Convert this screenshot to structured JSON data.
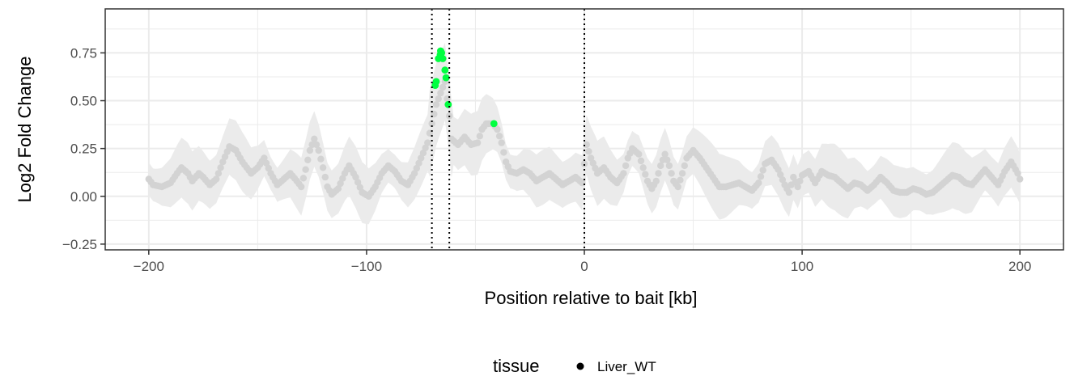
{
  "chart_data": {
    "type": "scatter",
    "xlabel": "Position relative to bait [kb]",
    "ylabel": "Log2 Fold Change",
    "xlim": [
      -220,
      220
    ],
    "ylim": [
      -0.28,
      0.98
    ],
    "x_ticks": [
      -200,
      -100,
      0,
      100,
      200
    ],
    "x_tick_labels": [
      "−200",
      "−100",
      "0",
      "100",
      "200"
    ],
    "y_ticks": [
      -0.25,
      0.0,
      0.25,
      0.5,
      0.75
    ],
    "y_tick_labels": [
      "−0.25",
      "0.00",
      "0.25",
      "0.50",
      "0.75"
    ],
    "grid": true,
    "vlines": [
      -70,
      -62,
      0
    ],
    "legend": {
      "title": "tissue",
      "position": "bottom",
      "entries": [
        "Liver_WT"
      ]
    },
    "colors": {
      "base_points": "#d3d3d3",
      "highlight_points": "#00ff40",
      "ribbon": "#ebebeb",
      "grid": "#ebebeb",
      "vline": "#000000"
    },
    "profile_knots": [
      [
        -200,
        0.09
      ],
      [
        -198,
        0.06
      ],
      [
        -194,
        0.05
      ],
      [
        -190,
        0.07
      ],
      [
        -187,
        0.12
      ],
      [
        -185,
        0.15
      ],
      [
        -182,
        0.12
      ],
      [
        -180,
        0.08
      ],
      [
        -177,
        0.12
      ],
      [
        -175,
        0.1
      ],
      [
        -172,
        0.06
      ],
      [
        -169,
        0.09
      ],
      [
        -166,
        0.18
      ],
      [
        -163,
        0.26
      ],
      [
        -160,
        0.24
      ],
      [
        -157,
        0.18
      ],
      [
        -153,
        0.12
      ],
      [
        -150,
        0.15
      ],
      [
        -147,
        0.2
      ],
      [
        -144,
        0.12
      ],
      [
        -141,
        0.06
      ],
      [
        -138,
        0.09
      ],
      [
        -135,
        0.12
      ],
      [
        -132,
        0.08
      ],
      [
        -130,
        0.05
      ],
      [
        -128,
        0.14
      ],
      [
        -126,
        0.24
      ],
      [
        -124,
        0.3
      ],
      [
        -122,
        0.24
      ],
      [
        -120,
        0.15
      ],
      [
        -118,
        0.05
      ],
      [
        -116,
        0.01
      ],
      [
        -113,
        0.04
      ],
      [
        -110,
        0.12
      ],
      [
        -108,
        0.16
      ],
      [
        -105,
        0.1
      ],
      [
        -102,
        0.02
      ],
      [
        -99,
        0.0
      ],
      [
        -96,
        0.05
      ],
      [
        -93,
        0.12
      ],
      [
        -90,
        0.16
      ],
      [
        -87,
        0.13
      ],
      [
        -84,
        0.08
      ],
      [
        -81,
        0.06
      ],
      [
        -78,
        0.12
      ],
      [
        -75,
        0.2
      ],
      [
        -72,
        0.28
      ],
      [
        -70,
        0.38
      ],
      [
        -68,
        0.48
      ],
      [
        -64,
        0.6
      ],
      [
        -62,
        0.42
      ],
      [
        -61,
        0.3
      ],
      [
        -58,
        0.27
      ],
      [
        -55,
        0.31
      ],
      [
        -52,
        0.27
      ],
      [
        -49,
        0.28
      ],
      [
        -47,
        0.35
      ],
      [
        -45,
        0.38
      ],
      [
        -42,
        0.38
      ],
      [
        -40,
        0.35
      ],
      [
        -38,
        0.28
      ],
      [
        -36,
        0.18
      ],
      [
        -34,
        0.13
      ],
      [
        -31,
        0.12
      ],
      [
        -28,
        0.14
      ],
      [
        -25,
        0.12
      ],
      [
        -22,
        0.08
      ],
      [
        -19,
        0.1
      ],
      [
        -16,
        0.12
      ],
      [
        -13,
        0.09
      ],
      [
        -10,
        0.06
      ],
      [
        -7,
        0.08
      ],
      [
        -4,
        0.1
      ],
      [
        -1,
        0.07
      ],
      [
        1,
        0.27
      ],
      [
        3,
        0.2
      ],
      [
        6,
        0.12
      ],
      [
        9,
        0.15
      ],
      [
        12,
        0.1
      ],
      [
        15,
        0.07
      ],
      [
        18,
        0.12
      ],
      [
        20,
        0.2
      ],
      [
        22,
        0.25
      ],
      [
        25,
        0.22
      ],
      [
        27,
        0.15
      ],
      [
        29,
        0.08
      ],
      [
        31,
        0.04
      ],
      [
        33,
        0.08
      ],
      [
        35,
        0.16
      ],
      [
        37,
        0.22
      ],
      [
        39,
        0.16
      ],
      [
        41,
        0.08
      ],
      [
        43,
        0.05
      ],
      [
        45,
        0.12
      ],
      [
        47,
        0.2
      ],
      [
        50,
        0.24
      ],
      [
        53,
        0.2
      ],
      [
        56,
        0.15
      ],
      [
        59,
        0.1
      ],
      [
        62,
        0.05
      ],
      [
        65,
        0.05
      ],
      [
        68,
        0.06
      ],
      [
        71,
        0.07
      ],
      [
        74,
        0.05
      ],
      [
        77,
        0.03
      ],
      [
        80,
        0.07
      ],
      [
        83,
        0.17
      ],
      [
        86,
        0.19
      ],
      [
        89,
        0.14
      ],
      [
        92,
        0.06
      ],
      [
        94,
        0.02
      ],
      [
        96,
        0.1
      ],
      [
        98,
        0.05
      ],
      [
        100,
        0.11
      ],
      [
        103,
        0.13
      ],
      [
        106,
        0.07
      ],
      [
        109,
        0.13
      ],
      [
        112,
        0.11
      ],
      [
        115,
        0.1
      ],
      [
        118,
        0.07
      ],
      [
        121,
        0.04
      ],
      [
        124,
        0.07
      ],
      [
        127,
        0.06
      ],
      [
        130,
        0.03
      ],
      [
        133,
        0.06
      ],
      [
        136,
        0.1
      ],
      [
        139,
        0.07
      ],
      [
        142,
        0.03
      ],
      [
        145,
        0.02
      ],
      [
        148,
        0.02
      ],
      [
        151,
        0.04
      ],
      [
        154,
        0.03
      ],
      [
        157,
        0.01
      ],
      [
        160,
        0.02
      ],
      [
        163,
        0.05
      ],
      [
        166,
        0.08
      ],
      [
        169,
        0.11
      ],
      [
        172,
        0.1
      ],
      [
        175,
        0.07
      ],
      [
        178,
        0.06
      ],
      [
        181,
        0.1
      ],
      [
        184,
        0.14
      ],
      [
        187,
        0.1
      ],
      [
        190,
        0.06
      ],
      [
        193,
        0.13
      ],
      [
        196,
        0.18
      ],
      [
        199,
        0.12
      ],
      [
        200,
        0.09
      ]
    ],
    "highlight_points": [
      [
        -68.5,
        0.58
      ],
      [
        -68,
        0.6
      ],
      [
        -67,
        0.72
      ],
      [
        -66.2,
        0.74
      ],
      [
        -66,
        0.76
      ],
      [
        -65.5,
        0.75
      ],
      [
        -65,
        0.72
      ],
      [
        -64,
        0.66
      ],
      [
        -63.5,
        0.62
      ],
      [
        -62.5,
        0.48
      ],
      [
        -41.5,
        0.38
      ]
    ]
  }
}
